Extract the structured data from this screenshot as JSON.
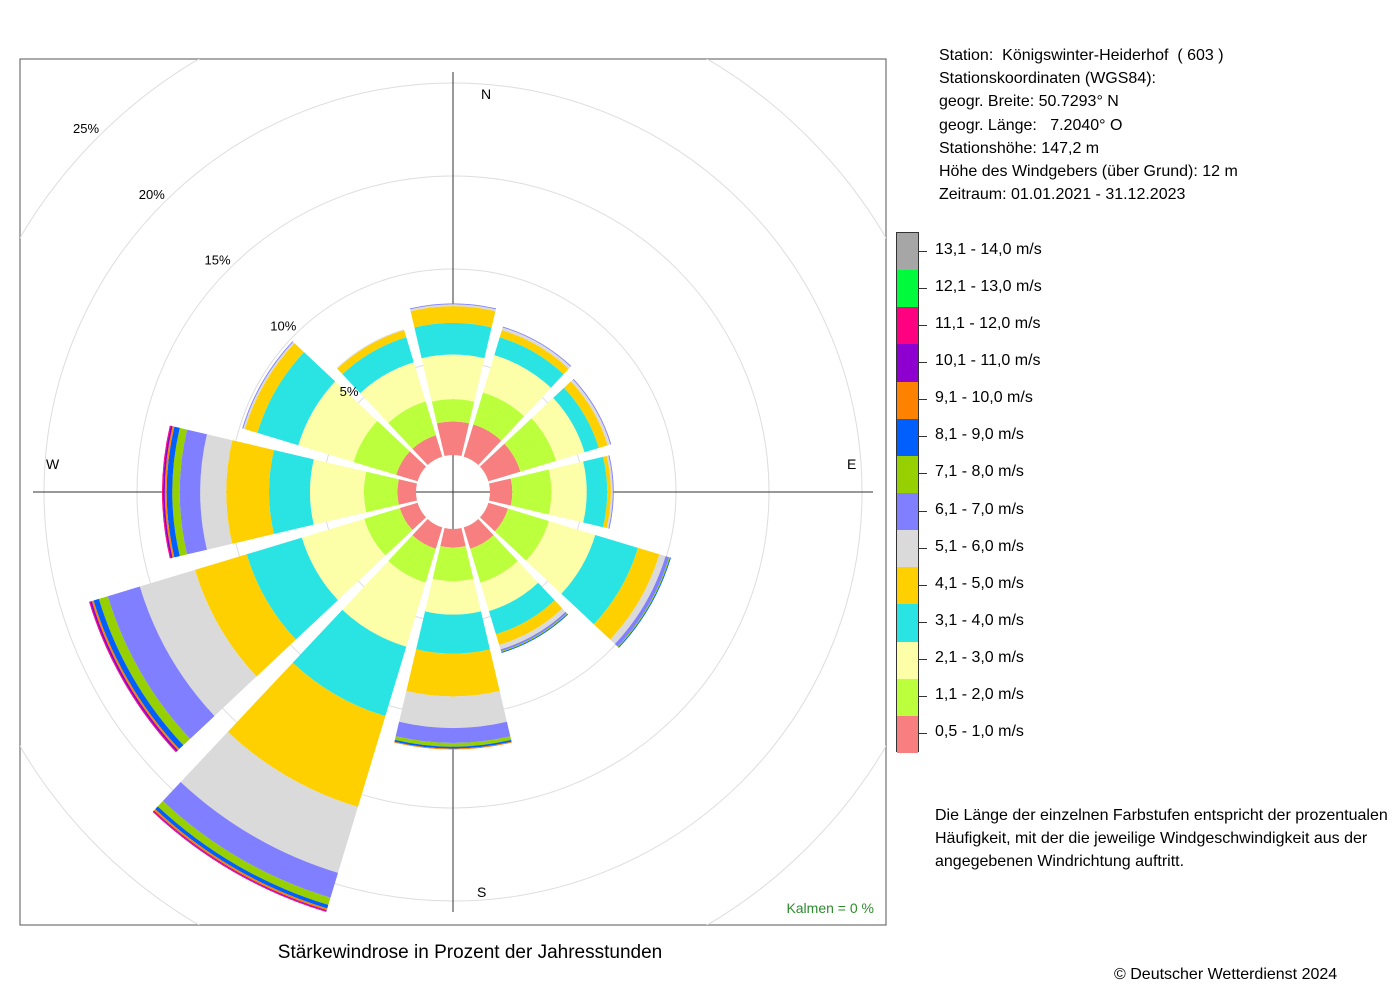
{
  "station": {
    "line1": "Station:  Königswinter-Heiderhof  ( 603 )",
    "line2": "Stationskoordinaten (WGS84):",
    "line3": "geogr. Breite: 50.7293° N",
    "line4": "geogr. Länge:   7.2040° O",
    "line5": "Stationshöhe: 147,2 m",
    "line6": "Höhe des Windgebers (über Grund): 12 m",
    "line7": "Zeitraum: 01.01.2021 - 31.12.2023"
  },
  "note": "Die Länge der einzelnen Farbstufen entspricht der prozentualen Häufigkeit, mit der die jeweilige Windgeschwindigkeit aus der angegebenen Windrichtung auftritt.",
  "caption": "Stärkewindrose in Prozent der Jahresstunden",
  "copyright": "© Deutscher Wetterdienst  2024",
  "calm": "Kalmen  =  0 %",
  "compass": {
    "n": "N",
    "e": "E",
    "s": "S",
    "w": "W"
  },
  "chart_data": {
    "type": "polar-stacked-bar",
    "title": "Stärkewindrose in Prozent der Jahresstunden",
    "directions_deg": [
      0,
      30,
      60,
      90,
      120,
      150,
      180,
      210,
      240,
      270,
      300,
      330
    ],
    "ring_values": [
      5,
      10,
      15,
      20,
      25
    ],
    "ring_labels": [
      "5%",
      "10%",
      "15%",
      "20%",
      "25%"
    ],
    "radius_max": 25,
    "classes": [
      {
        "label": "0,5 - 1,0 m/s",
        "color": "#f77f7f"
      },
      {
        "label": "1,1 - 2,0 m/s",
        "color": "#bcff3c"
      },
      {
        "label": "2,1 - 3,0 m/s",
        "color": "#fcffa8"
      },
      {
        "label": "3,1 - 4,0 m/s",
        "color": "#2ae4e4"
      },
      {
        "label": "4,1 - 5,0 m/s",
        "color": "#ffd000"
      },
      {
        "label": "5,1 - 6,0 m/s",
        "color": "#dadada"
      },
      {
        "label": "6,1 - 7,0 m/s",
        "color": "#7f7fff"
      },
      {
        "label": "7,1 - 8,0 m/s",
        "color": "#96d000"
      },
      {
        "label": "8,1 - 9,0 m/s",
        "color": "#005ffd"
      },
      {
        "label": "9,1 - 10,0 m/s",
        "color": "#fc8200"
      },
      {
        "label": "10,1 - 11,0 m/s",
        "color": "#8e00d0"
      },
      {
        "label": "11,1 - 12,0 m/s",
        "color": "#fe0080"
      },
      {
        "label": "12,1 - 13,0 m/s",
        "color": "#00fb3c"
      },
      {
        "label": "13,1 - 14,0 m/s",
        "color": "#a6a6a6"
      }
    ],
    "series": [
      [
        1.8,
        1.2,
        2.4,
        1.7,
        0.9,
        0.1,
        0.05,
        0,
        0,
        0,
        0,
        0,
        0,
        0
      ],
      [
        1.8,
        1.8,
        2.1,
        1.0,
        0.4,
        0.15,
        0.05,
        0,
        0,
        0,
        0,
        0,
        0,
        0
      ],
      [
        1.8,
        2.0,
        1.6,
        0.8,
        0.5,
        0.15,
        0.05,
        0,
        0,
        0,
        0,
        0,
        0,
        0
      ],
      [
        1.2,
        2.1,
        1.9,
        1.1,
        0.2,
        0.1,
        0.05,
        0,
        0,
        0,
        0,
        0,
        0,
        0
      ],
      [
        1.1,
        2.3,
        2.6,
        2.4,
        1.2,
        0.35,
        0.2,
        0.05,
        0.05,
        0,
        0,
        0,
        0,
        0
      ],
      [
        1.2,
        1.9,
        1.6,
        1.3,
        0.6,
        0.25,
        0.1,
        0.05,
        0.05,
        0,
        0,
        0,
        0,
        0
      ],
      [
        1.0,
        1.8,
        1.8,
        2.1,
        2.3,
        1.7,
        0.8,
        0.2,
        0.1,
        0.05,
        0,
        0,
        0,
        0
      ],
      [
        1.2,
        1.9,
        3.6,
        3.9,
        5.1,
        3.7,
        1.4,
        0.4,
        0.2,
        0.1,
        0.05,
        0.05,
        0,
        0
      ],
      [
        1.0,
        2.0,
        3.5,
        3.1,
        2.9,
        3.1,
        1.8,
        0.5,
        0.3,
        0.1,
        0.1,
        0.05,
        0,
        0
      ],
      [
        1.0,
        1.8,
        2.9,
        2.2,
        2.3,
        1.4,
        1.1,
        0.4,
        0.3,
        0.1,
        0.1,
        0.05,
        0,
        0
      ],
      [
        1.2,
        2.4,
        3.1,
        2.3,
        0.7,
        0.1,
        0.05,
        0,
        0,
        0,
        0,
        0,
        0,
        0
      ],
      [
        1.2,
        1.9,
        2.2,
        1.4,
        0.4,
        0.05,
        0,
        0,
        0,
        0,
        0,
        0,
        0,
        0
      ]
    ],
    "legend_position": "right"
  }
}
